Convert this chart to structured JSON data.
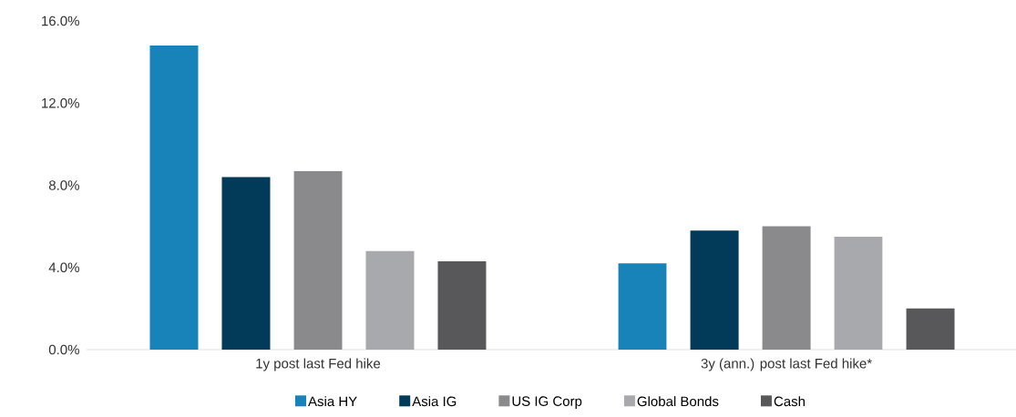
{
  "chart_data": {
    "type": "bar",
    "categories": [
      "1y post last Fed hike",
      "3y (ann.) post last Fed hike*"
    ],
    "series": [
      {
        "name": "Asia HY",
        "color": "#1783b8",
        "values": [
          14.8,
          4.2
        ]
      },
      {
        "name": "Asia IG",
        "color": "#023a59",
        "values": [
          8.4,
          5.8
        ]
      },
      {
        "name": "US IG Corp",
        "color": "#8a8a8d",
        "values": [
          8.7,
          6.0
        ]
      },
      {
        "name": "Global Bonds",
        "color": "#a8a9ac",
        "values": [
          4.8,
          5.5
        ]
      },
      {
        "name": "Cash",
        "color": "#58585a",
        "values": [
          4.3,
          2.0
        ]
      }
    ],
    "ylim": [
      0,
      16
    ],
    "yticks": [
      {
        "value": 0,
        "label": "0.0%"
      },
      {
        "value": 4,
        "label": "4.0%"
      },
      {
        "value": 8,
        "label": "8.0%"
      },
      {
        "value": 12,
        "label": "12.0%"
      },
      {
        "value": 16,
        "label": "16.0%"
      }
    ],
    "grid": false,
    "legend": "bottom"
  }
}
